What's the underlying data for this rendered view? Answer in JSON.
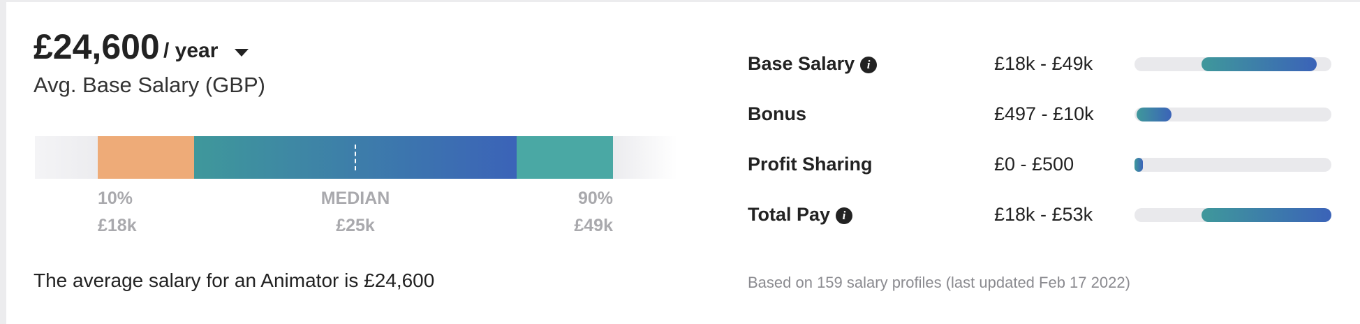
{
  "salary": {
    "amount": "£24,600",
    "period": "/ year",
    "caption": "Avg. Base Salary (GBP)",
    "percentiles": [
      {
        "name": "10%",
        "value": "£18k"
      },
      {
        "name": "MEDIAN",
        "value": "£25k"
      },
      {
        "name": "90%",
        "value": "£49k"
      }
    ],
    "summary": "The average salary for an Animator is £24,600"
  },
  "breakdown": {
    "rows": [
      {
        "label": "Base Salary",
        "info": true,
        "range": "£18k - £49k",
        "min": 18000,
        "max": 49000
      },
      {
        "label": "Bonus",
        "info": false,
        "range": "£497 - £10k",
        "min": 497,
        "max": 10000
      },
      {
        "label": "Profit Sharing",
        "info": false,
        "range": "£0 - £500",
        "min": 0,
        "max": 500
      },
      {
        "label": "Total Pay",
        "info": true,
        "range": "£18k - £53k",
        "min": 18000,
        "max": 53000
      }
    ],
    "footnote": "Based on 159 salary profiles (last updated Feb 17 2022)"
  }
}
